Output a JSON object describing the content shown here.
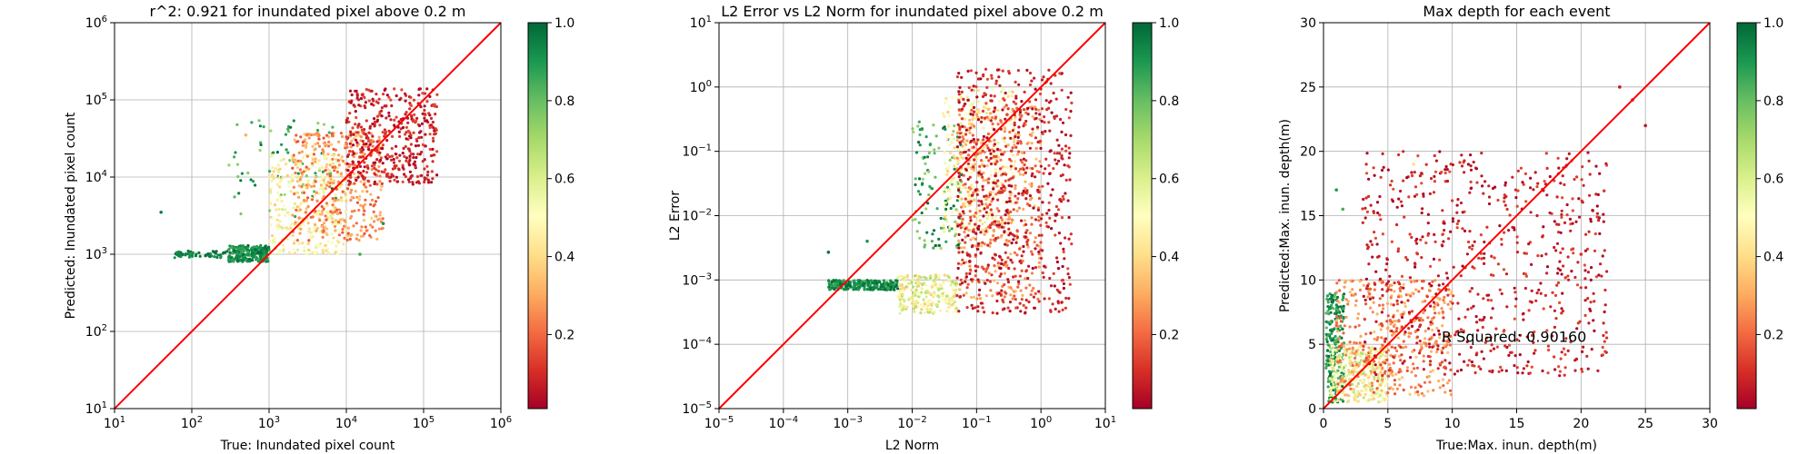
{
  "colorbar": {
    "colors": [
      "#a50026",
      "#d73027",
      "#f46d43",
      "#fdae61",
      "#fee08b",
      "#ffffbf",
      "#d9ef8b",
      "#a6d96a",
      "#66bd63",
      "#1a9850",
      "#006837"
    ],
    "ticks": [
      "0.2",
      "0.4",
      "0.6",
      "0.8",
      "1.0"
    ],
    "tick_values": [
      0.2,
      0.4,
      0.6,
      0.8,
      1.0
    ],
    "range": [
      0.01,
      1.0
    ]
  },
  "line_color": "#ff0000",
  "chart_data": [
    {
      "type": "scatter",
      "title": "r^2: 0.921 for inundated pixel above 0.2 m",
      "xlabel": "True: Inundated pixel count",
      "ylabel": "Predicted: Inundated pixel count",
      "xscale": "log",
      "yscale": "log",
      "xlim": [
        10,
        1000000
      ],
      "ylim": [
        10,
        1000000
      ],
      "xticks": [
        {
          "v": 1,
          "base": "10",
          "exp": "1"
        },
        {
          "v": 2,
          "base": "10",
          "exp": "2"
        },
        {
          "v": 3,
          "base": "10",
          "exp": "3"
        },
        {
          "v": 4,
          "base": "10",
          "exp": "4"
        },
        {
          "v": 5,
          "base": "10",
          "exp": "5"
        },
        {
          "v": 6,
          "base": "10",
          "exp": "6"
        }
      ],
      "yticks": [
        {
          "v": 1,
          "base": "10",
          "exp": "1"
        },
        {
          "v": 2,
          "base": "10",
          "exp": "2"
        },
        {
          "v": 3,
          "base": "10",
          "exp": "3"
        },
        {
          "v": 4,
          "base": "10",
          "exp": "4"
        },
        {
          "v": 5,
          "base": "10",
          "exp": "5"
        },
        {
          "v": 6,
          "base": "10",
          "exp": "6"
        }
      ],
      "grid": true,
      "reference_line": {
        "label": "y = x"
      },
      "annotation": "",
      "point_clusters": [
        {
          "label": "green band",
          "x": [
            300,
            1000
          ],
          "y": [
            800,
            1300
          ],
          "color_range": [
            0.85,
            1.0
          ],
          "n": 260
        },
        {
          "label": "green tail",
          "x": [
            60,
            300
          ],
          "y": [
            900,
            1100
          ],
          "color_range": [
            0.9,
            1.0
          ],
          "n": 50
        },
        {
          "label": "green outliers",
          "x": [
            300,
            8000
          ],
          "y": [
            3000,
            60000
          ],
          "color_range": [
            0.7,
            1.0
          ],
          "n": 70
        },
        {
          "label": "yellow body",
          "x": [
            1000,
            10000
          ],
          "y": [
            1000,
            20000
          ],
          "color_range": [
            0.35,
            0.6
          ],
          "n": 320
        },
        {
          "label": "orange body",
          "x": [
            2000,
            30000
          ],
          "y": [
            1500,
            40000
          ],
          "color_range": [
            0.15,
            0.35
          ],
          "n": 380
        },
        {
          "label": "red tip",
          "x": [
            10000,
            150000
          ],
          "y": [
            8000,
            140000
          ],
          "color_range": [
            0.0,
            0.15
          ],
          "n": 420
        }
      ],
      "points": [
        {
          "x": 40,
          "y": 3500,
          "c": 0.95
        },
        {
          "x": 500,
          "y": 35000,
          "c": 0.3
        },
        {
          "x": 30000,
          "y": 2500,
          "c": 0.9
        },
        {
          "x": 15000,
          "y": 1000,
          "c": 0.85
        },
        {
          "x": 20000,
          "y": 3000,
          "c": 0.5
        }
      ]
    },
    {
      "type": "scatter",
      "title": "L2 Error vs L2 Norm for inundated pixel above 0.2 m",
      "xlabel": "L2 Norm",
      "ylabel": "L2 Error",
      "xscale": "log",
      "yscale": "log",
      "xlim": [
        1e-05,
        10
      ],
      "ylim": [
        1e-05,
        10
      ],
      "xticks": [
        {
          "v": -5,
          "base": "10",
          "exp": "−5"
        },
        {
          "v": -4,
          "base": "10",
          "exp": "−4"
        },
        {
          "v": -3,
          "base": "10",
          "exp": "−3"
        },
        {
          "v": -2,
          "base": "10",
          "exp": "−2"
        },
        {
          "v": -1,
          "base": "10",
          "exp": "−1"
        },
        {
          "v": 0,
          "base": "10",
          "exp": "0"
        },
        {
          "v": 1,
          "base": "10",
          "exp": "1"
        }
      ],
      "yticks": [
        {
          "v": -5,
          "base": "10",
          "exp": "−5"
        },
        {
          "v": -4,
          "base": "10",
          "exp": "−4"
        },
        {
          "v": -3,
          "base": "10",
          "exp": "−3"
        },
        {
          "v": -2,
          "base": "10",
          "exp": "−2"
        },
        {
          "v": -1,
          "base": "10",
          "exp": "−1"
        },
        {
          "v": 0,
          "base": "10",
          "exp": "0"
        },
        {
          "v": 1,
          "base": "10",
          "exp": "1"
        }
      ],
      "grid": true,
      "reference_line": {
        "label": "y = x"
      },
      "annotation": "",
      "point_clusters": [
        {
          "label": "green band",
          "x": [
            0.0005,
            0.006
          ],
          "y": [
            0.0007,
            0.001
          ],
          "color_range": [
            0.85,
            1.0
          ],
          "n": 240
        },
        {
          "label": "yellow dip",
          "x": [
            0.006,
            0.05
          ],
          "y": [
            0.0003,
            0.0012
          ],
          "color_range": [
            0.35,
            0.7
          ],
          "n": 240
        },
        {
          "label": "green rise",
          "x": [
            0.01,
            0.06
          ],
          "y": [
            0.003,
            0.3
          ],
          "color_range": [
            0.7,
            1.0
          ],
          "n": 120
        },
        {
          "label": "yellow rise",
          "x": [
            0.03,
            0.4
          ],
          "y": [
            0.005,
            1.0
          ],
          "color_range": [
            0.35,
            0.6
          ],
          "n": 280
        },
        {
          "label": "orange body",
          "x": [
            0.05,
            1.0
          ],
          "y": [
            0.0005,
            0.5
          ],
          "color_range": [
            0.15,
            0.35
          ],
          "n": 380
        },
        {
          "label": "red body",
          "x": [
            0.05,
            3.0
          ],
          "y": [
            0.0003,
            2.0
          ],
          "color_range": [
            0.0,
            0.15
          ],
          "n": 650
        }
      ],
      "points": [
        {
          "x": 0.0005,
          "y": 0.0027,
          "c": 0.98
        },
        {
          "x": 0.002,
          "y": 0.004,
          "c": 0.9
        }
      ]
    },
    {
      "type": "scatter",
      "title": "Max depth for each event",
      "xlabel": "True:Max. inun. depth(m)",
      "ylabel": "Predicted:Max. inun. depth(m)",
      "xscale": "linear",
      "yscale": "linear",
      "xlim": [
        0,
        30
      ],
      "ylim": [
        0,
        30
      ],
      "xticks": [
        {
          "v": 0,
          "label": "0"
        },
        {
          "v": 5,
          "label": "5"
        },
        {
          "v": 10,
          "label": "10"
        },
        {
          "v": 15,
          "label": "15"
        },
        {
          "v": 20,
          "label": "20"
        },
        {
          "v": 25,
          "label": "25"
        },
        {
          "v": 30,
          "label": "30"
        }
      ],
      "yticks": [
        {
          "v": 0,
          "label": "0"
        },
        {
          "v": 5,
          "label": "5"
        },
        {
          "v": 10,
          "label": "10"
        },
        {
          "v": 15,
          "label": "15"
        },
        {
          "v": 20,
          "label": "20"
        },
        {
          "v": 25,
          "label": "25"
        },
        {
          "v": 30,
          "label": "30"
        }
      ],
      "grid": true,
      "reference_line": {
        "label": "y = x"
      },
      "annotation": "R Squared: 0.90160",
      "point_clusters": [
        {
          "label": "green spike",
          "x": [
            0.2,
            1.6
          ],
          "y": [
            0.5,
            9.0
          ],
          "color_range": [
            0.8,
            1.0
          ],
          "n": 220
        },
        {
          "label": "yellow low",
          "x": [
            0.5,
            5.0
          ],
          "y": [
            0.5,
            5.0
          ],
          "color_range": [
            0.35,
            0.7
          ],
          "n": 300
        },
        {
          "label": "orange mid",
          "x": [
            1.0,
            10.0
          ],
          "y": [
            1.0,
            10.0
          ],
          "color_range": [
            0.15,
            0.35
          ],
          "n": 400
        },
        {
          "label": "red high",
          "x": [
            3.0,
            22.0
          ],
          "y": [
            2.5,
            20.0
          ],
          "color_range": [
            0.0,
            0.15
          ],
          "n": 700
        }
      ],
      "points": [
        {
          "x": 1.0,
          "y": 17.0,
          "c": 0.9
        },
        {
          "x": 1.5,
          "y": 15.5,
          "c": 0.85
        },
        {
          "x": 23.0,
          "y": 25.0,
          "c": 0.05
        },
        {
          "x": 24.0,
          "y": 24.0,
          "c": 0.05
        },
        {
          "x": 25.0,
          "y": 22.0,
          "c": 0.05
        },
        {
          "x": 20.0,
          "y": 12.0,
          "c": 0.1
        },
        {
          "x": 7.0,
          "y": 19.0,
          "c": 0.4
        }
      ]
    }
  ]
}
